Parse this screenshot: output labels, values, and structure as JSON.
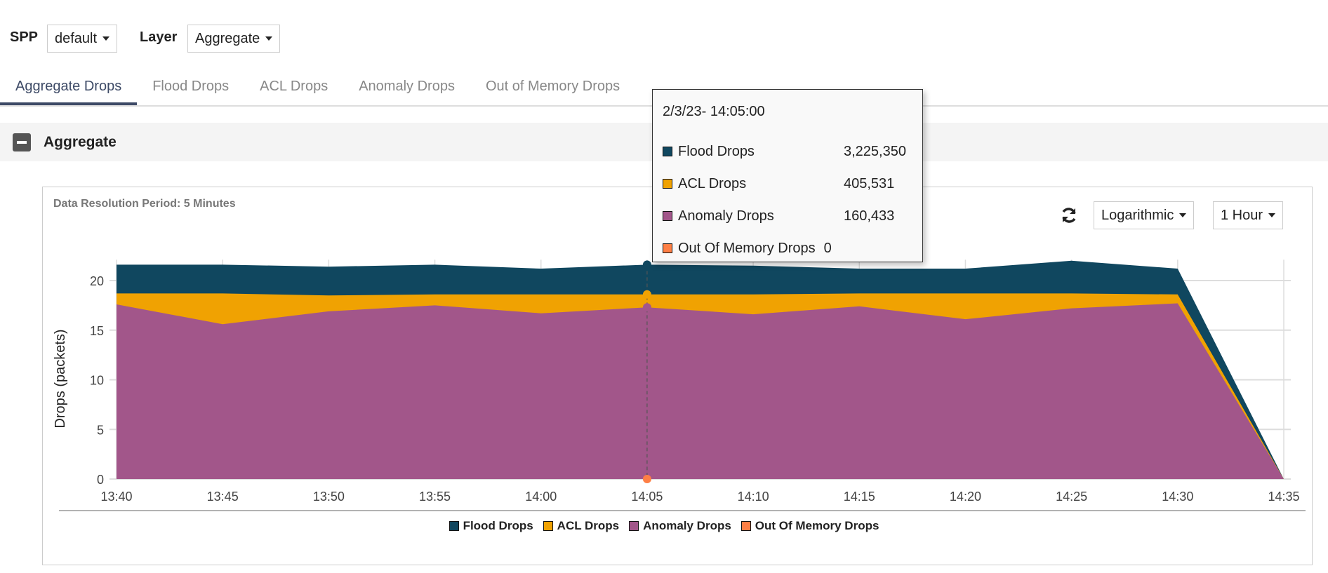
{
  "filters": {
    "spp_label": "SPP",
    "spp_value": "default",
    "layer_label": "Layer",
    "layer_value": "Aggregate"
  },
  "tabs": [
    "Aggregate Drops",
    "Flood Drops",
    "ACL Drops",
    "Anomaly Drops",
    "Out of Memory Drops"
  ],
  "active_tab": "Aggregate Drops",
  "section": {
    "title": "Aggregate",
    "icon": "collapse-minus-icon"
  },
  "panel": {
    "resolution": "Data Resolution Period: 5 Minutes",
    "refresh_icon": "refresh-icon",
    "scale_value": "Logarithmic",
    "range_value": "1 Hour"
  },
  "tooltip": {
    "date": "2/3/23- 14:05:00",
    "rows": [
      {
        "name": "Flood Drops",
        "value": "3,225,350"
      },
      {
        "name": "ACL Drops",
        "value": "405,531"
      },
      {
        "name": "Anomaly Drops",
        "value": "160,433"
      },
      {
        "name": "Out Of Memory Drops",
        "value": "0"
      }
    ]
  },
  "chart_data": {
    "type": "area",
    "ylabel": "Drops (packets)",
    "xlabel": "",
    "y_scale": "logarithmic",
    "ylim": [
      0,
      22
    ],
    "yticks": [
      "0",
      "5",
      "10",
      "15",
      "20"
    ],
    "categories": [
      "13:40",
      "13:45",
      "13:50",
      "13:55",
      "14:00",
      "14:05",
      "14:10",
      "14:15",
      "14:20",
      "14:25",
      "14:30",
      "14:35"
    ],
    "grid": true,
    "legend": "bottom",
    "highlight": "14:05",
    "series": [
      {
        "name": "Flood Drops",
        "color": "#10475f",
        "values": [
          21.6,
          21.6,
          21.4,
          21.6,
          21.2,
          21.6,
          21.5,
          21.2,
          21.2,
          22.0,
          21.2,
          0
        ]
      },
      {
        "name": "ACL Drops",
        "color": "#f0a202",
        "values": [
          18.7,
          18.7,
          18.5,
          18.6,
          18.6,
          18.6,
          18.6,
          18.7,
          18.7,
          18.7,
          18.6,
          0
        ]
      },
      {
        "name": "Anomaly Drops",
        "color": "#a2568a",
        "values": [
          17.6,
          15.6,
          16.9,
          17.5,
          16.7,
          17.3,
          16.6,
          17.4,
          16.1,
          17.2,
          17.7,
          0
        ]
      },
      {
        "name": "Out Of Memory Drops",
        "color": "#fe7f45",
        "values": [
          0,
          0,
          0,
          0,
          0,
          0,
          0,
          0,
          0,
          0,
          0,
          0
        ]
      }
    ]
  }
}
